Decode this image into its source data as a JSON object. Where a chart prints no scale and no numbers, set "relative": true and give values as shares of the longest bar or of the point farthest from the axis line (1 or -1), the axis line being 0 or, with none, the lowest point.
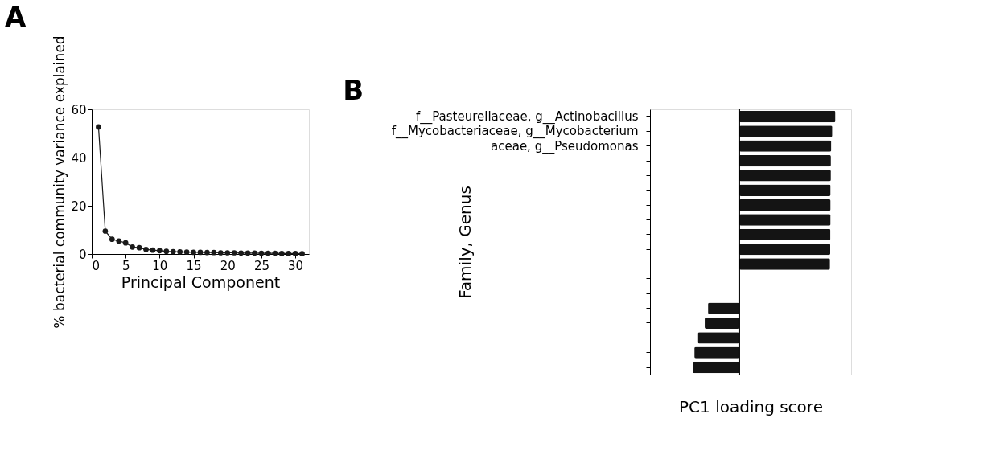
{
  "chart_data": [
    {
      "type": "line",
      "title": "A",
      "xlabel": "Principal Component",
      "ylabel": "% bacterial community variance explained",
      "marker": "circle",
      "grid": false,
      "xlim": [
        0,
        32
      ],
      "xticks": [
        0,
        5,
        10,
        15,
        20,
        25,
        30
      ],
      "ylim": [
        0,
        60
      ],
      "yticks": [
        0,
        20,
        40,
        60
      ],
      "x": [
        1,
        2,
        3,
        4,
        5,
        6,
        7,
        8,
        9,
        10,
        11,
        12,
        13,
        14,
        15,
        16,
        17,
        18,
        19,
        20,
        21,
        22,
        23,
        24,
        25,
        26,
        27,
        28,
        29,
        30,
        31
      ],
      "series": [
        {
          "color": "#1a1a1a",
          "values": [
            52.7,
            9.5,
            6.1,
            5.4,
            4.6,
            2.9,
            2.6,
            1.9,
            1.6,
            1.4,
            1.1,
            1.0,
            0.9,
            0.8,
            0.7,
            0.7,
            0.6,
            0.6,
            0.5,
            0.5,
            0.5,
            0.4,
            0.4,
            0.4,
            0.3,
            0.3,
            0.3,
            0.2,
            0.2,
            0.2,
            0.1
          ]
        }
      ]
    },
    {
      "type": "bar",
      "title": "B",
      "orientation": "horizontal",
      "relative": true,
      "xlabel": "PC1 loading score",
      "ylabel": "Family, Genus",
      "categories": [
        "f__Pasteurellaceae, g__Actinobacillus",
        "f__Mycobacteriaceae, g__Mycobacterium",
        "aceae, g__Pseudomonas",
        null,
        null,
        null,
        null,
        null,
        null,
        null,
        null,
        null,
        null,
        null,
        null,
        null,
        null,
        null
      ],
      "series": [
        {
          "color": "#141414",
          "values": [
            1,
            0.968,
            0.957,
            0.953,
            0.953,
            0.95,
            0.95,
            0.95,
            0.948,
            0.946,
            0.944,
            null,
            null,
            -0.325,
            -0.359,
            -0.431,
            -0.467,
            -0.483
          ]
        }
      ]
    }
  ]
}
